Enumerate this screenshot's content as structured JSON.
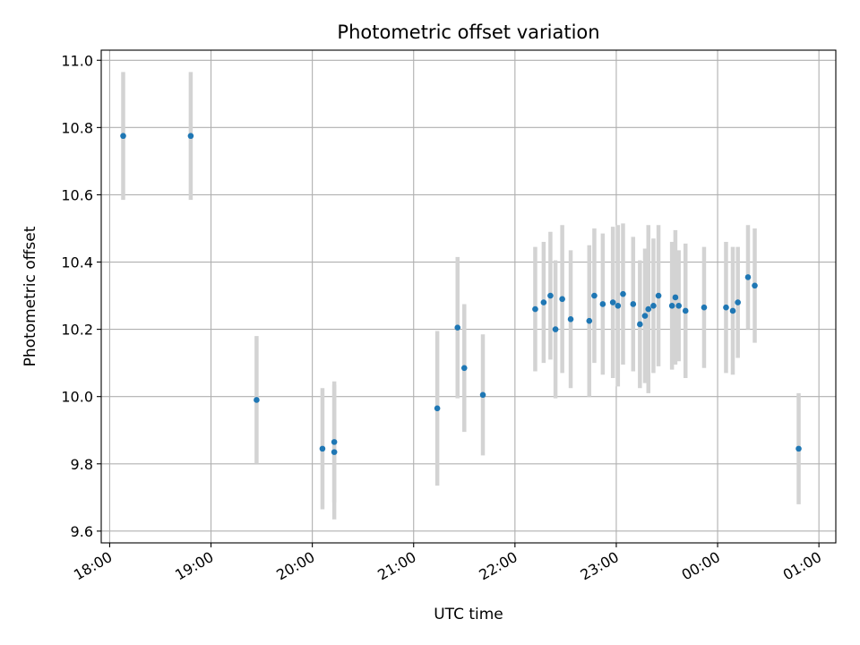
{
  "chart_data": {
    "type": "scatter",
    "title": "Photometric offset variation",
    "xlabel": "UTC time",
    "ylabel": "Photometric offset",
    "x_tick_labels": [
      "18:00",
      "19:00",
      "20:00",
      "21:00",
      "22:00",
      "23:00",
      "00:00",
      "01:00"
    ],
    "y_ticks": [
      9.6,
      9.8,
      10.0,
      10.2,
      10.4,
      10.6,
      10.8,
      11.0
    ],
    "y_tick_labels": [
      "9.6",
      "9.8",
      "10.0",
      "10.2",
      "10.4",
      "10.6",
      "10.8",
      "11.0"
    ],
    "x_range": [
      "17:55",
      "01:10"
    ],
    "y_range": [
      9.565,
      11.03
    ],
    "grid": true,
    "colors": {
      "points": "#1f77b4",
      "error_bars": "#d3d3d3",
      "grid": "#b0b0b0"
    },
    "series": [
      {
        "points": [
          {
            "x": "18:08",
            "y": 10.775,
            "err": 0.19
          },
          {
            "x": "18:48",
            "y": 10.775,
            "err": 0.19
          },
          {
            "x": "19:27",
            "y": 9.99,
            "err": 0.19
          },
          {
            "x": "20:06",
            "y": 9.845,
            "err": 0.18
          },
          {
            "x": "20:13",
            "y": 9.865,
            "err": 0.18
          },
          {
            "x": "20:13",
            "y": 9.835,
            "err": 0.2
          },
          {
            "x": "21:14",
            "y": 9.965,
            "err": 0.23
          },
          {
            "x": "21:26",
            "y": 10.205,
            "err": 0.21
          },
          {
            "x": "21:30",
            "y": 10.085,
            "err": 0.19
          },
          {
            "x": "21:41",
            "y": 10.005,
            "err": 0.18
          },
          {
            "x": "22:12",
            "y": 10.26,
            "err": 0.185
          },
          {
            "x": "22:17",
            "y": 10.28,
            "err": 0.18
          },
          {
            "x": "22:21",
            "y": 10.3,
            "err": 0.19
          },
          {
            "x": "22:24",
            "y": 10.2,
            "err": 0.205
          },
          {
            "x": "22:28",
            "y": 10.29,
            "err": 0.22
          },
          {
            "x": "22:33",
            "y": 10.23,
            "err": 0.205
          },
          {
            "x": "22:44",
            "y": 10.225,
            "err": 0.225
          },
          {
            "x": "22:47",
            "y": 10.3,
            "err": 0.2
          },
          {
            "x": "22:52",
            "y": 10.275,
            "err": 0.21
          },
          {
            "x": "22:58",
            "y": 10.28,
            "err": 0.225
          },
          {
            "x": "23:01",
            "y": 10.27,
            "err": 0.24
          },
          {
            "x": "23:04",
            "y": 10.305,
            "err": 0.21
          },
          {
            "x": "23:10",
            "y": 10.275,
            "err": 0.2
          },
          {
            "x": "23:14",
            "y": 10.215,
            "err": 0.19
          },
          {
            "x": "23:17",
            "y": 10.24,
            "err": 0.2
          },
          {
            "x": "23:19",
            "y": 10.26,
            "err": 0.25
          },
          {
            "x": "23:22",
            "y": 10.27,
            "err": 0.2
          },
          {
            "x": "23:25",
            "y": 10.3,
            "err": 0.21
          },
          {
            "x": "23:33",
            "y": 10.27,
            "err": 0.19
          },
          {
            "x": "23:35",
            "y": 10.295,
            "err": 0.2
          },
          {
            "x": "23:37",
            "y": 10.27,
            "err": 0.165
          },
          {
            "x": "23:41",
            "y": 10.255,
            "err": 0.2
          },
          {
            "x": "23:52",
            "y": 10.265,
            "err": 0.18
          },
          {
            "x": "00:05",
            "y": 10.265,
            "err": 0.195
          },
          {
            "x": "00:09",
            "y": 10.255,
            "err": 0.19
          },
          {
            "x": "00:12",
            "y": 10.28,
            "err": 0.165
          },
          {
            "x": "00:18",
            "y": 10.355,
            "err": 0.155
          },
          {
            "x": "00:22",
            "y": 10.33,
            "err": 0.17
          },
          {
            "x": "00:48",
            "y": 9.845,
            "err": 0.165
          }
        ]
      }
    ]
  }
}
